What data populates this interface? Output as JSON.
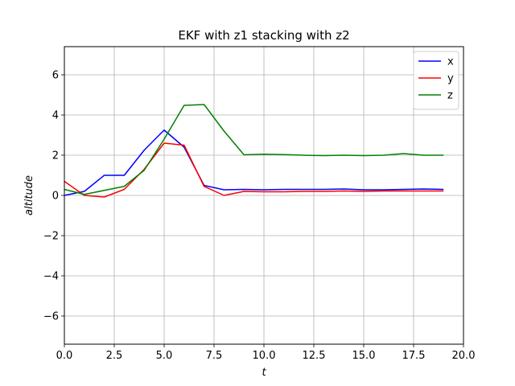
{
  "chart_data": {
    "type": "line",
    "title": "EKF with z1 stacking with z2",
    "xlabel": "t",
    "ylabel": "altitude",
    "xlim": [
      0,
      20
    ],
    "ylim": [
      -7.4,
      7.4
    ],
    "xticks": [
      0,
      2.5,
      5,
      7.5,
      10,
      12.5,
      15,
      17.5,
      20
    ],
    "xtick_labels": [
      "0.0",
      "2.5",
      "5.0",
      "7.5",
      "10.0",
      "12.5",
      "15.0",
      "17.5",
      "20.0"
    ],
    "yticks": [
      -6,
      -4,
      -2,
      0,
      2,
      4,
      6
    ],
    "ytick_labels": [
      "−6",
      "−4",
      "−2",
      "0",
      "2",
      "4",
      "6"
    ],
    "grid": true,
    "legend_position": "top-right",
    "x": [
      0,
      1,
      2,
      3,
      4,
      5,
      6,
      7,
      8,
      9,
      10,
      11,
      12,
      13,
      14,
      15,
      16,
      17,
      18,
      19
    ],
    "series": [
      {
        "name": "x",
        "color": "#0000ff",
        "values": [
          0.0,
          0.2,
          1.0,
          1.0,
          2.25,
          3.25,
          2.4,
          0.5,
          0.28,
          0.3,
          0.28,
          0.3,
          0.3,
          0.3,
          0.32,
          0.28,
          0.28,
          0.3,
          0.32,
          0.3
        ]
      },
      {
        "name": "y",
        "color": "#ff0000",
        "values": [
          0.7,
          0.0,
          -0.08,
          0.3,
          1.3,
          2.6,
          2.5,
          0.45,
          0.0,
          0.2,
          0.18,
          0.18,
          0.2,
          0.2,
          0.22,
          0.2,
          0.22,
          0.22,
          0.22,
          0.22
        ]
      },
      {
        "name": "z",
        "color": "#008000",
        "values": [
          0.3,
          0.05,
          0.25,
          0.45,
          1.25,
          2.8,
          4.48,
          4.52,
          3.2,
          2.02,
          2.05,
          2.03,
          2.0,
          1.98,
          2.0,
          1.98,
          2.0,
          2.08,
          2.0,
          2.0
        ]
      }
    ]
  }
}
